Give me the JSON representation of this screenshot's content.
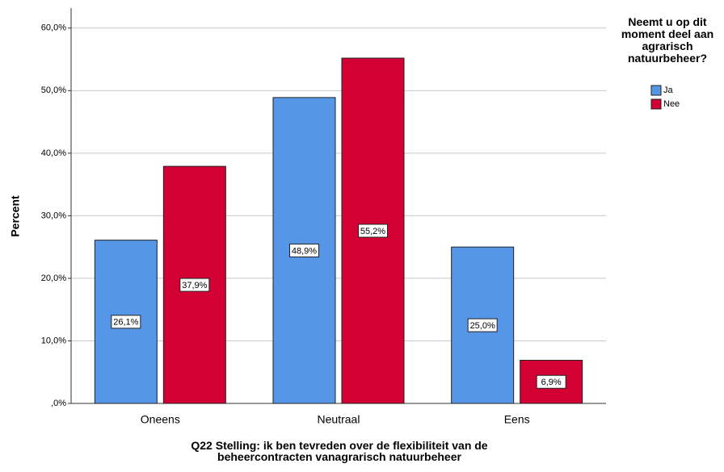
{
  "chart_data": {
    "type": "bar",
    "y_label": "Percent",
    "x_label": "Q22 Stelling: ik ben tevreden over de flexibiliteit van de beheercontracten vanagrarisch natuurbeheer",
    "legend_title": "Neemt u op dit moment deel aan agrarisch natuurbeheer?",
    "legend": "right",
    "grid": true,
    "categories": [
      "Oneens",
      "Neutraal",
      "Eens"
    ],
    "series": [
      {
        "name": "Ja",
        "color": "#5596e6",
        "values": [
          26.1,
          48.9,
          25.0
        ],
        "value_labels": [
          "26,1%",
          "48,9%",
          "25,0%"
        ]
      },
      {
        "name": "Nee",
        "color": "#d20033",
        "values": [
          37.9,
          55.2,
          6.9
        ],
        "value_labels": [
          "37,9%",
          "55,2%",
          "6,9%"
        ]
      }
    ],
    "ylim": [
      0,
      63.2
    ],
    "yticks": [
      {
        "value": 0,
        "label": ",0%"
      },
      {
        "value": 10,
        "label": "10,0%"
      },
      {
        "value": 20,
        "label": "20,0%"
      },
      {
        "value": 30,
        "label": "30,0%"
      },
      {
        "value": 40,
        "label": "40,0%"
      },
      {
        "value": 50,
        "label": "50,0%"
      },
      {
        "value": 60,
        "label": "60,0%"
      }
    ]
  }
}
